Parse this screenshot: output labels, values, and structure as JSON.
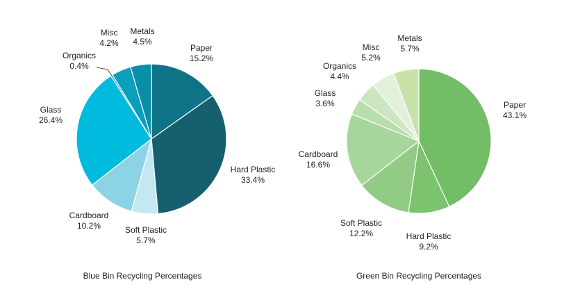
{
  "chart_data": [
    {
      "type": "pie",
      "title": "Blue Bin Recycling Percentages",
      "unit": "%",
      "slices": [
        {
          "name": "Paper",
          "value": 15.2,
          "value_label": "15.2%",
          "color": "#0e7387"
        },
        {
          "name": "Hard Plastic",
          "value": 33.4,
          "value_label": "33.4%",
          "color": "#155f6e"
        },
        {
          "name": "Soft Plastic",
          "value": 5.7,
          "value_label": "5.7%",
          "color": "#c4e8f1"
        },
        {
          "name": "Cardboard",
          "value": 10.2,
          "value_label": "10.2%",
          "color": "#8dd3e6"
        },
        {
          "name": "Glass",
          "value": 26.4,
          "value_label": "26.4%",
          "color": "#00bbde"
        },
        {
          "name": "Organics",
          "value": 0.4,
          "value_label": "0.4%",
          "color": "#0aa5c5"
        },
        {
          "name": "Misc",
          "value": 4.2,
          "value_label": "4.2%",
          "color": "#0a9fbb"
        },
        {
          "name": "Metals",
          "value": 4.5,
          "value_label": "4.5%",
          "color": "#0a8ea7"
        }
      ]
    },
    {
      "type": "pie",
      "title": "Green Bin Recycling Percentages",
      "unit": "%",
      "slices": [
        {
          "name": "Paper",
          "value": 43.1,
          "value_label": "43.1%",
          "color": "#72bd66"
        },
        {
          "name": "Hard Plastic",
          "value": 9.2,
          "value_label": "9.2%",
          "color": "#7cc370"
        },
        {
          "name": "Soft Plastic",
          "value": 12.2,
          "value_label": "12.2%",
          "color": "#92cb85"
        },
        {
          "name": "Cardboard",
          "value": 16.6,
          "value_label": "16.6%",
          "color": "#a7d69c"
        },
        {
          "name": "Glass",
          "value": 3.6,
          "value_label": "3.6%",
          "color": "#b8dead"
        },
        {
          "name": "Organics",
          "value": 4.4,
          "value_label": "4.4%",
          "color": "#cbe6c1"
        },
        {
          "name": "Misc",
          "value": 5.2,
          "value_label": "5.2%",
          "color": "#e2f0dc"
        },
        {
          "name": "Metals",
          "value": 5.7,
          "value_label": "5.7%",
          "color": "#c8e2a8"
        }
      ]
    }
  ]
}
